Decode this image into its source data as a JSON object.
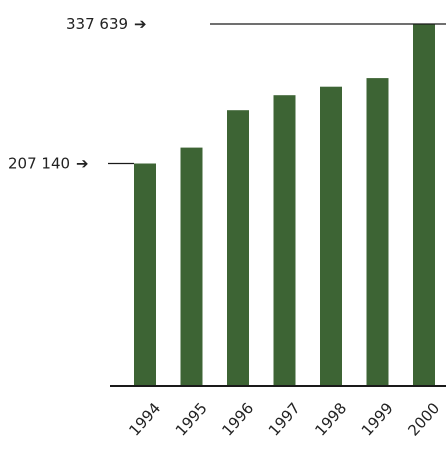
{
  "chart_data": {
    "type": "bar",
    "title": "",
    "xlabel": "",
    "ylabel": "",
    "categories": [
      "1994",
      "1995",
      "1996",
      "1997",
      "1998",
      "1999",
      "2000"
    ],
    "values": [
      207140,
      222000,
      257000,
      271000,
      279000,
      287000,
      337639
    ],
    "ylim": [
      0,
      337639
    ],
    "grid": false,
    "legend": "none",
    "bar_color": "#3d6434",
    "annotations": [
      {
        "text": "207 140",
        "arrow": "➔",
        "value": 207140,
        "category": "1994"
      },
      {
        "text": "337 639",
        "arrow": "➔",
        "value": 337639,
        "category": "2000"
      }
    ]
  }
}
